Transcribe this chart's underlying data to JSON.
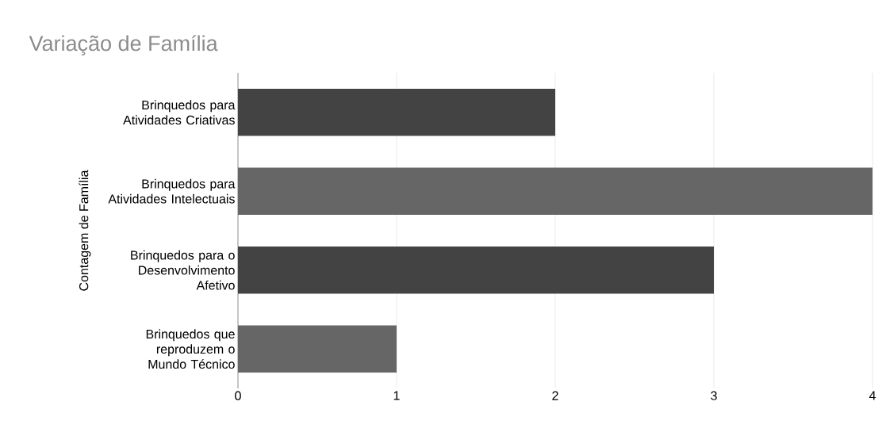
{
  "chart_data": {
    "type": "bar",
    "orientation": "horizontal",
    "title": "Variação de Família",
    "ylabel": "Contagem de Família",
    "categories": [
      "Brinquedos para Atividades Criativas",
      "Brinquedos para Atividades Intelectuais",
      "Brinquedos para o Desenvolvimento Afetivo",
      "Brinquedos que reproduzem o Mundo Técnico"
    ],
    "values": [
      2,
      4,
      3,
      1
    ],
    "colors": [
      "#434343",
      "#666666",
      "#434343",
      "#666666"
    ],
    "xlim": [
      0,
      4
    ],
    "xticks": [
      0,
      1,
      2,
      3,
      4
    ],
    "grid": "x"
  }
}
